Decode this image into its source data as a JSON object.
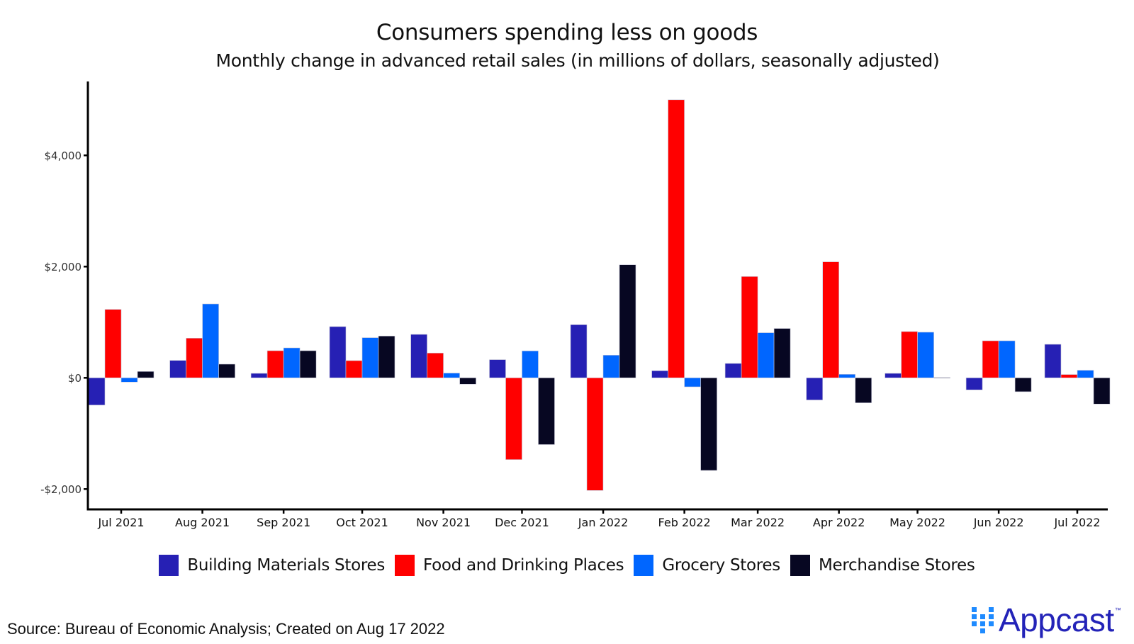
{
  "chart_data": {
    "type": "bar",
    "title": "Consumers spending less on goods",
    "subtitle": "Monthly change in advanced retail sales (in millions of dollars, seasonally adjusted)",
    "xlabel": "",
    "ylabel": "",
    "ylim": [
      -2400,
      5200
    ],
    "yticks": [
      {
        "value": -2000,
        "label": "-$2,000"
      },
      {
        "value": 0,
        "label": "$0"
      },
      {
        "value": 2000,
        "label": "$2,000"
      },
      {
        "value": 4000,
        "label": "$4,000"
      }
    ],
    "grid": false,
    "legend_position": "bottom",
    "categories": [
      "Jul 2021",
      "Aug 2021",
      "Sep 2021",
      "Oct 2021",
      "Nov 2021",
      "Dec 2021",
      "Jan 2022",
      "Feb 2022",
      "Mar 2022",
      "Apr 2022",
      "May 2022",
      "Jun 2022",
      "Jul 2022"
    ],
    "dates": [
      "2021-07-01",
      "2021-08-01",
      "2021-09-01",
      "2021-10-01",
      "2021-11-01",
      "2021-12-01",
      "2022-01-01",
      "2022-02-01",
      "2022-03-01",
      "2022-04-01",
      "2022-05-01",
      "2022-06-01",
      "2022-07-01"
    ],
    "series": [
      {
        "name": "Building Materials Stores",
        "color": "#2620b4",
        "values": [
          -490,
          313,
          80,
          921,
          781,
          327,
          955,
          127,
          259,
          -399,
          80,
          -217,
          602
        ]
      },
      {
        "name": "Food and Drinking Places",
        "color": "#ff0000",
        "values": [
          1230,
          713,
          488,
          310,
          446,
          -1470,
          -2025,
          5000,
          1822,
          2085,
          832,
          666,
          60
        ]
      },
      {
        "name": "Grocery Stores",
        "color": "#0066ff",
        "values": [
          -76,
          1329,
          539,
          722,
          85,
          484,
          408,
          -162,
          812,
          64,
          820,
          666,
          136
        ]
      },
      {
        "name": "Merchandise Stores",
        "color": "#070722",
        "values": [
          115,
          246,
          488,
          752,
          -115,
          -1200,
          2033,
          -1665,
          888,
          -450,
          5,
          -250,
          -471
        ]
      }
    ]
  },
  "footer": {
    "source": "Source: Bureau of Economic Analysis; Created on Aug 17 2022",
    "brand": "Appcast",
    "trademark": "™"
  }
}
